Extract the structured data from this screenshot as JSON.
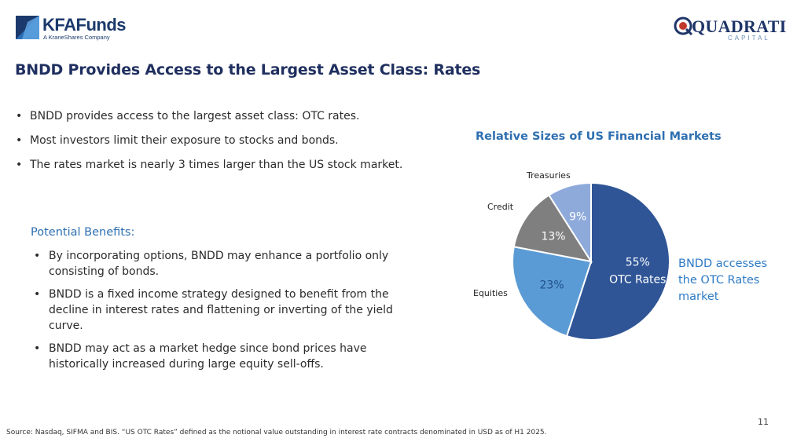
{
  "logos": {
    "kfa_name": "KFAFunds",
    "kfa_tagline": "A KraneShares Company",
    "quad_name": "QUADRATIC",
    "quad_tagline": "CAPITAL"
  },
  "title": "BNDD Provides Access to the Largest Asset Class: Rates",
  "bullets": [
    "BNDD provides access to the largest asset class: OTC rates.",
    "Most investors limit their exposure to stocks and bonds.",
    "The rates market is nearly 3 times larger than the US stock market."
  ],
  "benefits": {
    "heading": "Potential Benefits:",
    "items": [
      "By incorporating options, BNDD may enhance a portfolio only consisting of bonds.",
      "BNDD is a fixed income strategy designed to benefit from the decline in interest rates and flattening or inverting of the yield curve.",
      "BNDD may act as a market hedge since bond prices have historically increased during large equity sell-offs."
    ]
  },
  "chart_data": {
    "type": "pie",
    "title": "Relative Sizes of US Financial Markets",
    "slices": [
      {
        "label": "OTC Rates",
        "value": 55,
        "value_label": "55%",
        "color": "#2f5596"
      },
      {
        "label": "Equities",
        "value": 23,
        "value_label": "23%",
        "color": "#5b9bd5"
      },
      {
        "label": "Credit",
        "value": 13,
        "value_label": "13%",
        "color": "#7f7f7f"
      },
      {
        "label": "Treasuries",
        "value": 9,
        "value_label": "9%",
        "color": "#8eaadb"
      }
    ],
    "start": "12 o'clock",
    "direction": "clockwise"
  },
  "callout": "BNDD accesses the OTC Rates market",
  "page_number": "11",
  "source": "Source: Nasdaq, SIFMA and BIS. “US OTC Rates” defined as the notional value outstanding in interest rate contracts denominated in USD as of H1 2025."
}
